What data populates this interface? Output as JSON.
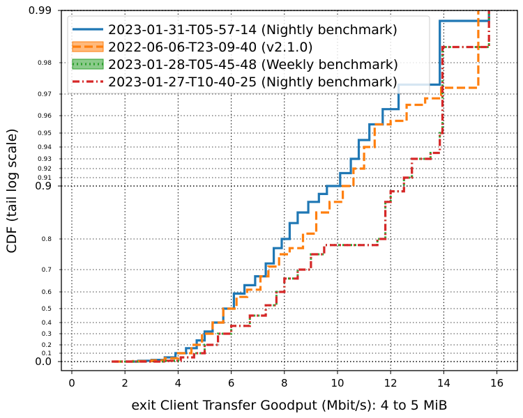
{
  "chart_data": {
    "type": "line",
    "xlabel": "exit Client Transfer Goodput (Mbit/s): 4 to 5 MiB",
    "ylabel": "CDF (tail log scale)",
    "xlim": [
      -0.4,
      16.8
    ],
    "xticks": [
      0,
      2,
      4,
      6,
      8,
      10,
      12,
      14,
      16
    ],
    "y_scale": "tail-log",
    "y_major_ticks": [
      0.0,
      0.9,
      0.99
    ],
    "y_minor_ticks": [
      0.1,
      0.2,
      0.3,
      0.4,
      0.5,
      0.6,
      0.7,
      0.8,
      0.91,
      0.92,
      0.93,
      0.94,
      0.95,
      0.96,
      0.97,
      0.98
    ],
    "grid": true,
    "legend_position": "top",
    "series": [
      {
        "name": "2023-01-31-T05-57-14 (Nightly benchmark)",
        "color": "#1f77b4",
        "style": "solid",
        "points": [
          [
            2.0,
            0.0
          ],
          [
            2.5,
            0.01
          ],
          [
            3.0,
            0.02
          ],
          [
            3.5,
            0.05
          ],
          [
            3.9,
            0.1
          ],
          [
            4.3,
            0.16
          ],
          [
            4.7,
            0.24
          ],
          [
            5.0,
            0.32
          ],
          [
            5.3,
            0.4
          ],
          [
            5.7,
            0.5
          ],
          [
            6.1,
            0.59
          ],
          [
            6.5,
            0.63
          ],
          [
            6.9,
            0.67
          ],
          [
            7.3,
            0.72
          ],
          [
            7.6,
            0.77
          ],
          [
            7.9,
            0.8
          ],
          [
            8.2,
            0.83
          ],
          [
            8.5,
            0.85
          ],
          [
            8.9,
            0.87
          ],
          [
            9.3,
            0.885
          ],
          [
            9.6,
            0.9
          ],
          [
            10.1,
            0.915
          ],
          [
            10.5,
            0.93
          ],
          [
            10.8,
            0.945
          ],
          [
            11.2,
            0.955
          ],
          [
            11.7,
            0.963
          ],
          [
            12.3,
            0.973
          ],
          [
            12.9,
            0.973
          ],
          [
            13.85,
            0.988
          ],
          [
            15.7,
            0.99
          ]
        ]
      },
      {
        "name": "2022-06-06-T23-09-40 (v2.1.0)",
        "color": "#ff7f0e",
        "style": "dashed",
        "points": [
          [
            1.6,
            0.0
          ],
          [
            2.3,
            0.005
          ],
          [
            3.0,
            0.015
          ],
          [
            3.5,
            0.04
          ],
          [
            4.0,
            0.1
          ],
          [
            4.5,
            0.2
          ],
          [
            4.9,
            0.3
          ],
          [
            5.3,
            0.4
          ],
          [
            5.7,
            0.5
          ],
          [
            6.2,
            0.57
          ],
          [
            6.6,
            0.61
          ],
          [
            7.1,
            0.67
          ],
          [
            7.4,
            0.71
          ],
          [
            7.8,
            0.75
          ],
          [
            8.2,
            0.77
          ],
          [
            8.7,
            0.81
          ],
          [
            9.2,
            0.85
          ],
          [
            9.7,
            0.87
          ],
          [
            10.2,
            0.9
          ],
          [
            10.6,
            0.92
          ],
          [
            11.0,
            0.94
          ],
          [
            11.4,
            0.955
          ],
          [
            12.0,
            0.957
          ],
          [
            12.6,
            0.965
          ],
          [
            13.3,
            0.968
          ],
          [
            13.9,
            0.972
          ],
          [
            15.0,
            0.972
          ],
          [
            15.3,
            0.99
          ]
        ]
      },
      {
        "name": "2023-01-28-T05-45-48 (Weekly benchmark)",
        "color": "#2ca02c",
        "style": "dotted",
        "points": [
          [
            1.5,
            0.0
          ],
          [
            3.5,
            0.01
          ],
          [
            4.1,
            0.05
          ],
          [
            4.6,
            0.1
          ],
          [
            5.0,
            0.2
          ],
          [
            5.5,
            0.3
          ],
          [
            6.0,
            0.37
          ],
          [
            6.7,
            0.45
          ],
          [
            7.3,
            0.52
          ],
          [
            7.7,
            0.6
          ],
          [
            8.0,
            0.66
          ],
          [
            8.5,
            0.7
          ],
          [
            9.0,
            0.75
          ],
          [
            9.5,
            0.78
          ],
          [
            11.1,
            0.78
          ],
          [
            11.5,
            0.8
          ],
          [
            11.8,
            0.87
          ],
          [
            12.0,
            0.89
          ],
          [
            12.5,
            0.91
          ],
          [
            12.8,
            0.93
          ],
          [
            13.5,
            0.935
          ],
          [
            13.85,
            0.95
          ],
          [
            13.95,
            0.983
          ],
          [
            14.9,
            0.983
          ],
          [
            15.7,
            0.99
          ]
        ]
      },
      {
        "name": "2023-01-27-T10-40-25 (Nightly benchmark)",
        "color": "#d62728",
        "style": "dashdot",
        "points": [
          [
            1.5,
            0.0
          ],
          [
            3.5,
            0.01
          ],
          [
            4.1,
            0.05
          ],
          [
            4.6,
            0.1
          ],
          [
            5.0,
            0.2
          ],
          [
            5.5,
            0.3
          ],
          [
            6.0,
            0.37
          ],
          [
            6.7,
            0.45
          ],
          [
            7.3,
            0.52
          ],
          [
            7.7,
            0.6
          ],
          [
            8.0,
            0.66
          ],
          [
            8.5,
            0.7
          ],
          [
            9.0,
            0.75
          ],
          [
            9.5,
            0.78
          ],
          [
            11.1,
            0.78
          ],
          [
            11.5,
            0.8
          ],
          [
            11.8,
            0.87
          ],
          [
            12.0,
            0.89
          ],
          [
            12.5,
            0.91
          ],
          [
            12.8,
            0.93
          ],
          [
            13.5,
            0.935
          ],
          [
            13.85,
            0.95
          ],
          [
            13.95,
            0.983
          ],
          [
            14.9,
            0.983
          ],
          [
            15.7,
            0.99
          ]
        ]
      }
    ]
  }
}
